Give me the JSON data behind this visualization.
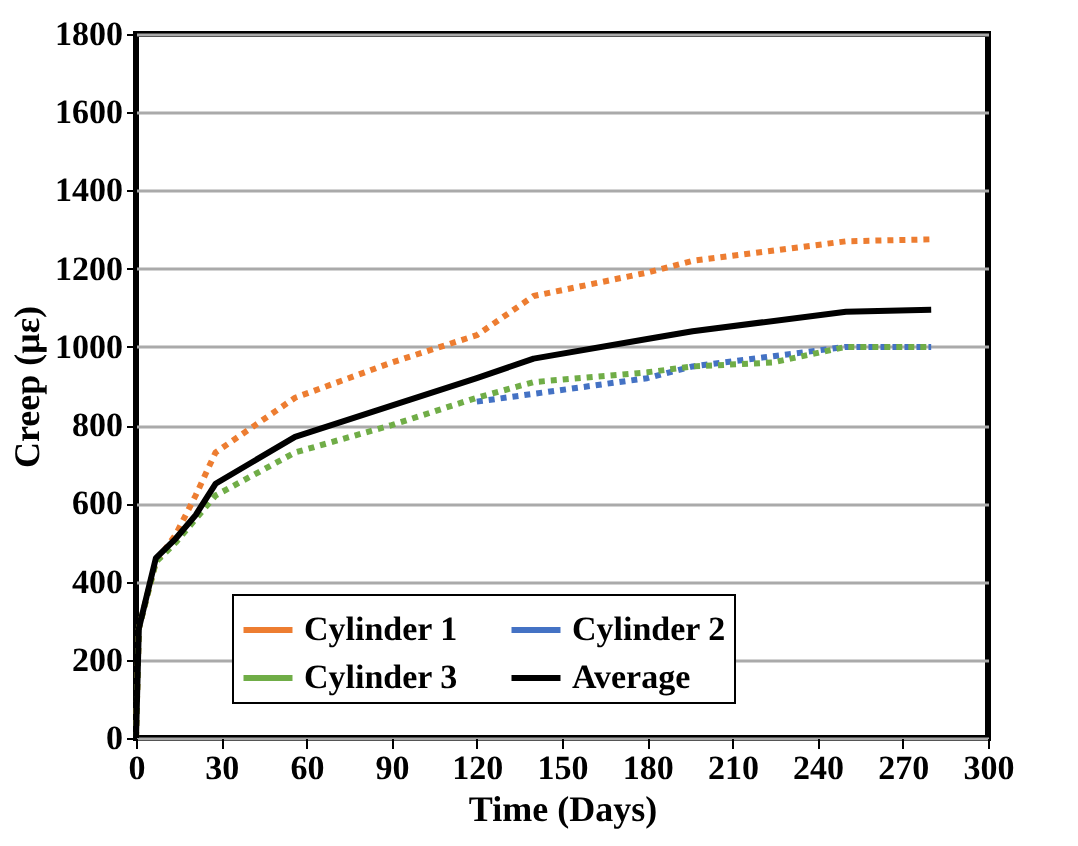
{
  "chart_data": {
    "type": "line",
    "xlabel": "Time (Days)",
    "ylabel": "Creep (με)",
    "xlim": [
      0,
      300
    ],
    "xticks": [
      0,
      30,
      60,
      90,
      120,
      150,
      180,
      210,
      240,
      270,
      300
    ],
    "ylim": [
      0,
      1800
    ],
    "yticks": [
      0,
      200,
      400,
      600,
      800,
      {
        "value": 1000,
        "label": "1000"
      },
      {
        "value": 1200,
        "label": "1200"
      },
      {
        "value": 1400,
        "label": "1400"
      },
      {
        "value": 1600,
        "label": "1600"
      },
      {
        "value": 1800,
        "label": "1800"
      }
    ],
    "grid": "y",
    "legend": "bottom",
    "marker": "none",
    "series": [
      {
        "name": "Cylinder 1",
        "color": "#ed7d31",
        "line_style": "dotted",
        "x": [
          0,
          1,
          7,
          14,
          21,
          28,
          56,
          90,
          120,
          140,
          180,
          196,
          250,
          280
        ],
        "values": [
          0,
          280,
          450,
          520,
          620,
          730,
          870,
          960,
          1030,
          1130,
          1190,
          1220,
          1270,
          1275
        ]
      },
      {
        "name": "Cylinder 2",
        "color": "#4472c4",
        "line_style": "dotted",
        "x": [
          120,
          140,
          180,
          196,
          250,
          280
        ],
        "values": [
          860,
          880,
          920,
          950,
          1000,
          1000
        ]
      },
      {
        "name": "Cylinder 3",
        "color": "#70ad47",
        "line_style": "dotted",
        "x": [
          0,
          1,
          7,
          14,
          21,
          28,
          56,
          90,
          120,
          140,
          180,
          196,
          224,
          250,
          280
        ],
        "values": [
          0,
          280,
          450,
          500,
          560,
          620,
          730,
          800,
          870,
          910,
          935,
          950,
          960,
          1000,
          1000
        ]
      },
      {
        "name": "Average",
        "color": "#000000",
        "line_style": "solid",
        "x": [
          0,
          1,
          7,
          14,
          21,
          28,
          56,
          90,
          120,
          140,
          180,
          196,
          250,
          280
        ],
        "values": [
          0,
          280,
          460,
          510,
          570,
          650,
          770,
          850,
          920,
          970,
          1020,
          1040,
          1090,
          1095
        ]
      }
    ]
  }
}
